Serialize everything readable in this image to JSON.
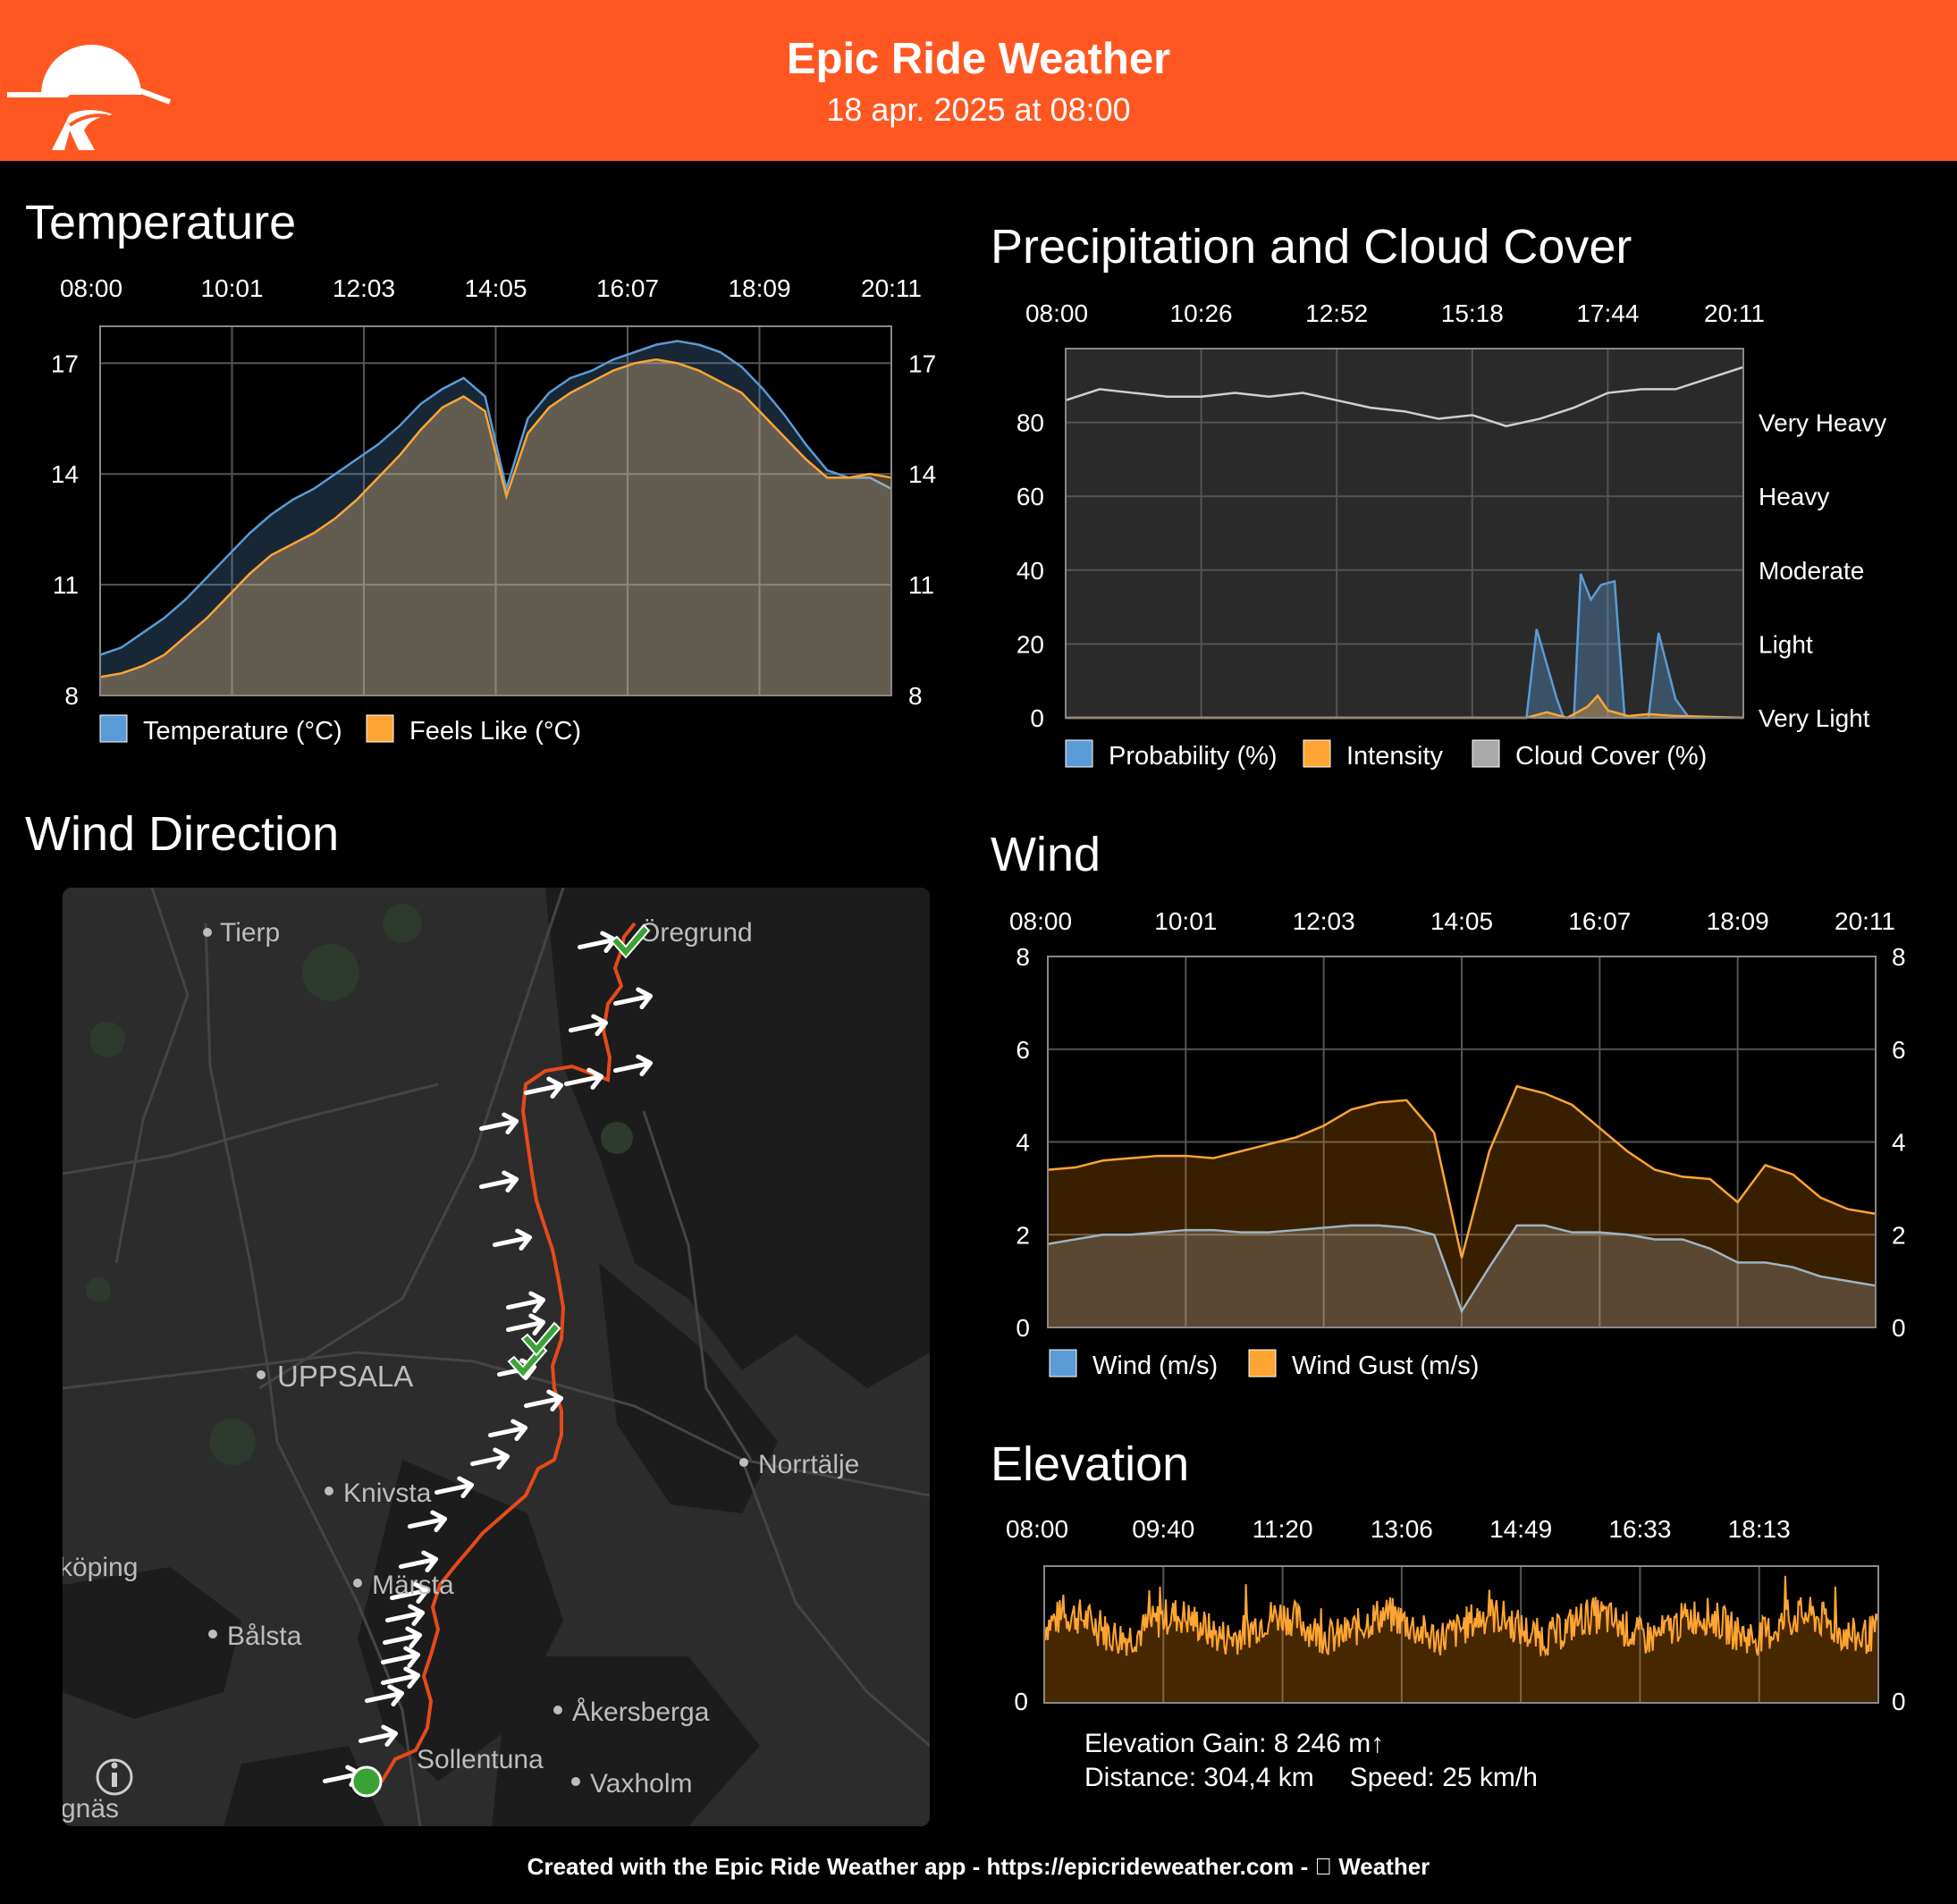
{
  "header": {
    "title": "Epic Ride Weather",
    "subtitle": "18 apr. 2025 at 08:00",
    "color": "#ff5722"
  },
  "sections": {
    "temperature": "Temperature",
    "precipitation": "Precipitation and Cloud Cover",
    "wind_direction": "Wind Direction",
    "wind": "Wind",
    "elevation": "Elevation"
  },
  "chart_data": [
    {
      "id": "temperature",
      "type": "area",
      "x_ticks": [
        "08:00",
        "10:01",
        "12:03",
        "14:05",
        "16:07",
        "18:09",
        "20:11"
      ],
      "ylim": [
        8,
        18
      ],
      "y_ticks": [
        8,
        11,
        14,
        17
      ],
      "grid": true,
      "legend_position": "bottom-left",
      "series": [
        {
          "name": "Temperature (°C)",
          "color": "#5b9bd5",
          "values": [
            9.1,
            9.3,
            9.7,
            10.1,
            10.6,
            11.2,
            11.8,
            12.4,
            12.9,
            13.3,
            13.6,
            14.0,
            14.4,
            14.8,
            15.3,
            15.9,
            16.3,
            16.6,
            16.1,
            13.6,
            15.5,
            16.2,
            16.6,
            16.8,
            17.1,
            17.3,
            17.5,
            17.6,
            17.5,
            17.3,
            16.9,
            16.3,
            15.6,
            14.8,
            14.1,
            13.9,
            13.9,
            13.6
          ]
        },
        {
          "name": "Feels Like (°C)",
          "color": "#ffa533",
          "values": [
            8.5,
            8.6,
            8.8,
            9.1,
            9.6,
            10.1,
            10.7,
            11.3,
            11.8,
            12.1,
            12.4,
            12.8,
            13.3,
            13.9,
            14.5,
            15.2,
            15.8,
            16.1,
            15.7,
            13.4,
            15.1,
            15.8,
            16.2,
            16.5,
            16.8,
            17.0,
            17.1,
            17.0,
            16.8,
            16.5,
            16.2,
            15.6,
            15.0,
            14.4,
            13.9,
            13.9,
            14.0,
            13.9
          ]
        }
      ]
    },
    {
      "id": "precipitation",
      "type": "area",
      "x_ticks": [
        "08:00",
        "10:26",
        "12:52",
        "15:18",
        "17:44",
        "20:11"
      ],
      "ylim": [
        0,
        100
      ],
      "y_ticks": [
        0,
        20,
        40,
        60,
        80
      ],
      "y2_labels": [
        "Very Light",
        "Light",
        "Moderate",
        "Heavy",
        "Very Heavy"
      ],
      "grid": true,
      "legend_position": "bottom-left",
      "series": [
        {
          "name": "Probability (%)",
          "color": "#5b9bd5",
          "points": [
            [
              0,
              0
            ],
            [
              0.68,
              0
            ],
            [
              0.695,
              24
            ],
            [
              0.725,
              5
            ],
            [
              0.735,
              0
            ],
            [
              0.75,
              0
            ],
            [
              0.76,
              39
            ],
            [
              0.775,
              32
            ],
            [
              0.79,
              36
            ],
            [
              0.81,
              37
            ],
            [
              0.825,
              0
            ],
            [
              0.86,
              0
            ],
            [
              0.875,
              23
            ],
            [
              0.9,
              5
            ],
            [
              0.92,
              0
            ],
            [
              1,
              0
            ]
          ]
        },
        {
          "name": "Intensity",
          "color": "#ffa533",
          "points": [
            [
              0,
              0
            ],
            [
              0.68,
              0
            ],
            [
              0.71,
              1.5
            ],
            [
              0.74,
              0
            ],
            [
              0.77,
              3
            ],
            [
              0.785,
              6
            ],
            [
              0.8,
              2
            ],
            [
              0.83,
              0.5
            ],
            [
              0.86,
              1
            ],
            [
              0.9,
              0.5
            ],
            [
              1,
              0
            ]
          ]
        },
        {
          "name": "Cloud Cover (%)",
          "color": "#aaaaaa",
          "points": [
            [
              0,
              86
            ],
            [
              0.05,
              89
            ],
            [
              0.1,
              88
            ],
            [
              0.15,
              87
            ],
            [
              0.2,
              87
            ],
            [
              0.25,
              88
            ],
            [
              0.3,
              87
            ],
            [
              0.35,
              88
            ],
            [
              0.4,
              86
            ],
            [
              0.45,
              84
            ],
            [
              0.5,
              83
            ],
            [
              0.55,
              81
            ],
            [
              0.6,
              82
            ],
            [
              0.65,
              79
            ],
            [
              0.7,
              81
            ],
            [
              0.75,
              84
            ],
            [
              0.8,
              88
            ],
            [
              0.85,
              89
            ],
            [
              0.9,
              89
            ],
            [
              0.95,
              92
            ],
            [
              1,
              95
            ]
          ]
        }
      ]
    },
    {
      "id": "wind",
      "type": "area",
      "x_ticks": [
        "08:00",
        "10:01",
        "12:03",
        "14:05",
        "16:07",
        "18:09",
        "20:11"
      ],
      "ylim": [
        0,
        8
      ],
      "y_ticks": [
        0,
        2,
        4,
        6,
        8
      ],
      "grid": true,
      "legend_position": "bottom-left",
      "series": [
        {
          "name": "Wind (m/s)",
          "color": "#5b9bd5",
          "values": [
            1.8,
            1.9,
            2.0,
            2.0,
            2.05,
            2.1,
            2.1,
            2.05,
            2.05,
            2.1,
            2.15,
            2.2,
            2.2,
            2.15,
            2.0,
            0.35,
            1.3,
            2.2,
            2.2,
            2.05,
            2.05,
            2.0,
            1.9,
            1.9,
            1.7,
            1.4,
            1.4,
            1.3,
            1.1,
            1.0,
            0.9
          ]
        },
        {
          "name": "Wind Gust (m/s)",
          "color": "#ffa533",
          "values": [
            3.4,
            3.45,
            3.6,
            3.65,
            3.7,
            3.7,
            3.65,
            3.8,
            3.95,
            4.1,
            4.35,
            4.7,
            4.85,
            4.9,
            4.2,
            1.5,
            3.8,
            5.2,
            5.05,
            4.8,
            4.3,
            3.8,
            3.4,
            3.25,
            3.2,
            2.7,
            3.5,
            3.3,
            2.8,
            2.55,
            2.45
          ]
        }
      ]
    },
    {
      "id": "elevation",
      "type": "area",
      "x_ticks": [
        "08:00",
        "09:40",
        "11:20",
        "13:06",
        "14:49",
        "16:33",
        "18:13"
      ],
      "y_ticks": [
        0
      ],
      "grid": true,
      "series": [
        {
          "name": "Elevation",
          "color": "#ffa533"
        }
      ]
    }
  ],
  "legends": {
    "temperature": [
      "Temperature (°C)",
      "Feels Like (°C)"
    ],
    "precipitation": [
      "Probability (%)",
      "Intensity",
      "Cloud Cover (%)"
    ],
    "wind": [
      "Wind (m/s)",
      "Wind Gust (m/s)"
    ]
  },
  "map": {
    "places": [
      "Tierp",
      "Öregrund",
      "UPPSALA",
      "Norrtälje",
      "Knivsta",
      "Märsta",
      "köping",
      "Bålsta",
      "Åkersberga",
      "Sollentuna",
      "Vaxholm",
      "gnäs"
    ],
    "route_color": "#e64a19",
    "start_color": "#2e9c2e"
  },
  "stats": {
    "elevation_gain": "Elevation Gain: 8 246 m↑",
    "distance": "Distance: 304,4 km",
    "speed": "Speed: 25 km/h"
  },
  "footer": "Created with the Epic Ride Weather app - https://epicrideweather.com -  Weather"
}
